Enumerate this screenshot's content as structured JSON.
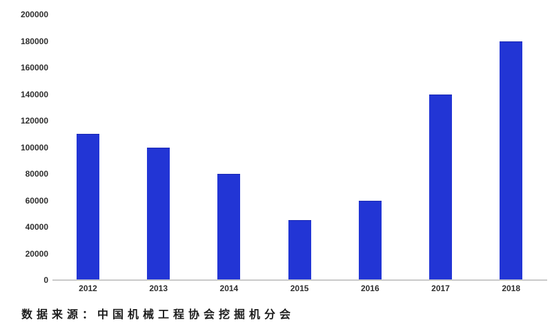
{
  "chart_data": {
    "type": "bar",
    "title": "",
    "xlabel": "",
    "ylabel": "",
    "categories": [
      "2012",
      "2013",
      "2014",
      "2015",
      "2016",
      "2017",
      "2018"
    ],
    "values": [
      110000,
      100000,
      80000,
      45000,
      60000,
      140000,
      180000
    ],
    "ylim": [
      0,
      200000
    ],
    "ytick_step": 20000,
    "yticks": [
      "0",
      "20000",
      "40000",
      "60000",
      "80000",
      "100000",
      "120000",
      "140000",
      "160000",
      "180000",
      "200000"
    ],
    "grid": false,
    "legend": "none",
    "bar_color": "#2235d5",
    "axis_line_color": "#c9c9c9",
    "label_color": "#2e2e2e"
  },
  "source_note": "数据来源：中国机械工程协会挖掘机分会"
}
